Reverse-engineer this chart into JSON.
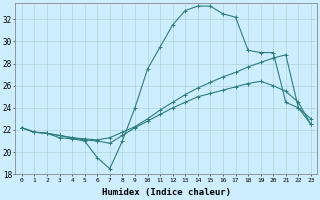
{
  "xlabel": "Humidex (Indice chaleur)",
  "bg_color": "#cceeff",
  "grid_color": "#aacccc",
  "line_color": "#2d7d7d",
  "xlim": [
    -0.5,
    23.5
  ],
  "ylim": [
    18,
    33.5
  ],
  "yticks": [
    18,
    20,
    22,
    24,
    26,
    28,
    30,
    32
  ],
  "xticks": [
    0,
    1,
    2,
    3,
    4,
    5,
    6,
    7,
    8,
    9,
    10,
    11,
    12,
    13,
    14,
    15,
    16,
    17,
    18,
    19,
    20,
    21,
    22,
    23
  ],
  "line1_x": [
    0,
    1,
    2,
    3,
    4,
    5,
    6,
    7,
    8,
    9,
    10,
    11,
    12,
    13,
    14,
    15,
    16,
    17,
    18,
    19,
    20,
    21,
    22,
    23
  ],
  "line1_y": [
    22.2,
    21.8,
    21.7,
    21.3,
    21.2,
    21.0,
    19.5,
    18.5,
    21.0,
    24.0,
    27.5,
    29.5,
    31.5,
    32.8,
    33.2,
    33.2,
    32.5,
    32.2,
    29.2,
    29.0,
    29.0,
    24.5,
    24.0,
    22.5
  ],
  "line2_x": [
    0,
    1,
    2,
    3,
    4,
    5,
    6,
    7,
    8,
    9,
    10,
    11,
    12,
    13,
    14,
    15,
    16,
    17,
    18,
    19,
    20,
    21,
    22,
    23
  ],
  "line2_y": [
    22.2,
    21.8,
    21.7,
    21.5,
    21.3,
    21.2,
    21.1,
    21.3,
    21.8,
    22.3,
    23.0,
    23.8,
    24.5,
    25.2,
    25.8,
    26.3,
    26.8,
    27.2,
    27.7,
    28.1,
    28.5,
    28.8,
    24.0,
    23.0
  ],
  "line3_x": [
    0,
    1,
    2,
    3,
    4,
    5,
    6,
    7,
    8,
    9,
    10,
    11,
    12,
    13,
    14,
    15,
    16,
    17,
    18,
    19,
    20,
    21,
    22,
    23
  ],
  "line3_y": [
    22.2,
    21.8,
    21.7,
    21.5,
    21.3,
    21.1,
    21.0,
    20.8,
    21.5,
    22.2,
    22.8,
    23.4,
    24.0,
    24.5,
    25.0,
    25.3,
    25.6,
    25.9,
    26.2,
    26.4,
    26.0,
    25.5,
    24.5,
    22.5
  ]
}
